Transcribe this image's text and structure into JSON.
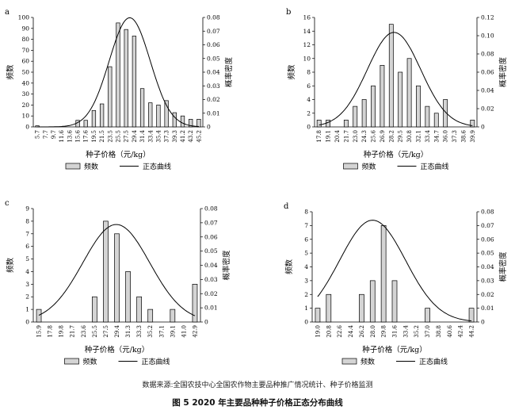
{
  "figure": {
    "caption": "图 5   2020 年主要品种种子价格正态分布曲线",
    "source": "数据来源:全国农技中心全国农作物主要品种推广情况统计、种子价格监测"
  },
  "chart_data": [
    {
      "panel": "a",
      "type": "bar+line",
      "xlabel": "种子价格（元/kg）",
      "ylabel": "频数",
      "y2label": "概率密度",
      "categories": [
        "5.7",
        "7.7",
        "9.7",
        "11.6",
        "13.6",
        "15.6",
        "17.6",
        "19.5",
        "21.5",
        "23.5",
        "25.5",
        "27.5",
        "29.4",
        "31.4",
        "33.4",
        "35.4",
        "37.3",
        "39.3",
        "41.2",
        "43.2",
        "45.2"
      ],
      "values": [
        1,
        0,
        0,
        0,
        0,
        6,
        6,
        15,
        21,
        55,
        95,
        89,
        83,
        35,
        22,
        20,
        24,
        13,
        10,
        7,
        7
      ],
      "ylim": [
        0,
        100
      ],
      "yticks": [
        0,
        10,
        20,
        30,
        40,
        50,
        60,
        70,
        80,
        90,
        100
      ],
      "y2lim": [
        0,
        0.08
      ],
      "y2ticks": [
        "0",
        "0.01",
        "0.02",
        "0.03",
        "0.04",
        "0.05",
        "0.06",
        "0.07",
        "0.08"
      ],
      "curve": {
        "mean": 28.3,
        "sd": 5.0
      },
      "legend": {
        "bar": "频数",
        "line": "正态曲线"
      }
    },
    {
      "panel": "b",
      "type": "bar+line",
      "xlabel": "种子价格（元/kg）",
      "ylabel": "频数",
      "y2label": "概率密度",
      "categories": [
        "17.8",
        "19.1",
        "20.4",
        "21.7",
        "23.0",
        "24.3",
        "25.6",
        "26.9",
        "28.2",
        "29.5",
        "30.8",
        "32.1",
        "33.4",
        "34.7",
        "36.0",
        "37.3",
        "38.6",
        "39.9"
      ],
      "values": [
        1,
        1,
        0,
        1,
        3,
        4,
        6,
        9,
        15,
        8,
        10,
        6,
        3,
        2,
        4,
        0,
        0,
        1
      ],
      "ylim": [
        0,
        16
      ],
      "yticks": [
        0,
        2,
        4,
        6,
        8,
        10,
        12,
        14,
        16
      ],
      "y2lim": [
        0,
        0.12
      ],
      "y2ticks": [
        "0",
        "0.02",
        "0.04",
        "0.06",
        "0.08",
        "0.10",
        "0.12"
      ],
      "curve": {
        "mean": 28.6,
        "sd": 3.85
      },
      "legend": {
        "bar": "频数",
        "line": "正态曲线"
      }
    },
    {
      "panel": "c",
      "type": "bar+line",
      "xlabel": "种子价格（元/kg）",
      "ylabel": "频数",
      "y2label": "概率密度",
      "categories": [
        "15.9",
        "17.8",
        "19.8",
        "21.7",
        "23.6",
        "25.5",
        "27.5",
        "29.4",
        "31.3",
        "33.3",
        "35.2",
        "37.1",
        "39.1",
        "41.0",
        "42.9"
      ],
      "values": [
        1,
        0,
        0,
        0,
        0,
        2,
        8,
        7,
        4,
        2,
        1,
        0,
        1,
        0,
        3
      ],
      "ylim": [
        0,
        9
      ],
      "yticks": [
        0,
        1,
        2,
        3,
        4,
        5,
        6,
        7,
        8,
        9
      ],
      "y2lim": [
        0,
        0.08
      ],
      "y2ticks": [
        "0",
        "0.01",
        "0.02",
        "0.03",
        "0.04",
        "0.05",
        "0.06",
        "0.07",
        "0.08"
      ],
      "curve": {
        "mean": 29.3,
        "sd": 5.8
      },
      "legend": {
        "bar": "频数",
        "line": "正态曲线"
      }
    },
    {
      "panel": "d",
      "type": "bar+line",
      "xlabel": "种子价格（元/kg）",
      "ylabel": "频数",
      "y2label": "概率密度",
      "categories": [
        "19.0",
        "20.8",
        "22.6",
        "24.4",
        "26.2",
        "28.0",
        "29.8",
        "31.6",
        "33.4",
        "35.2",
        "37.0",
        "38.8",
        "40.6",
        "42.4",
        "44.2"
      ],
      "values": [
        1,
        2,
        0,
        0,
        2,
        3,
        7,
        3,
        0,
        0,
        1,
        0,
        0,
        0,
        1
      ],
      "ylim": [
        0,
        8
      ],
      "yticks": [
        0,
        1,
        2,
        3,
        4,
        5,
        6,
        7,
        8
      ],
      "y2lim": [
        0,
        0.08
      ],
      "y2ticks": [
        "0",
        "0.01",
        "0.02",
        "0.03",
        "0.04",
        "0.05",
        "0.06",
        "0.07",
        "0.08"
      ],
      "curve": {
        "mean": 28.0,
        "sd": 5.4
      },
      "legend": {
        "bar": "频数",
        "line": "正态曲线"
      }
    }
  ]
}
